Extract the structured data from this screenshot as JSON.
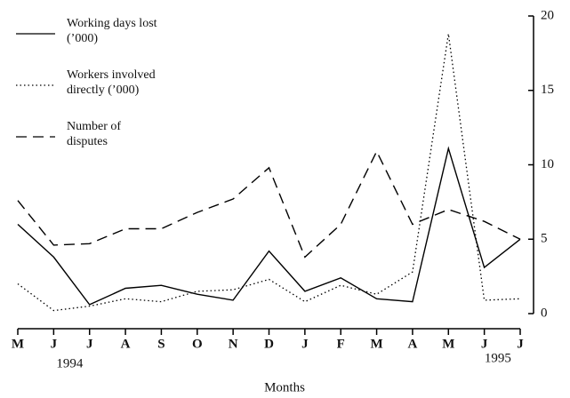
{
  "chart_data": {
    "type": "line",
    "x_label": "Months",
    "categories": [
      "M",
      "J",
      "J",
      "A",
      "S",
      "O",
      "N",
      "D",
      "J",
      "F",
      "M",
      "A",
      "M",
      "J",
      "J"
    ],
    "year_labels": [
      "1994",
      "1995"
    ],
    "y_axis_side": "right",
    "ylim": [
      0,
      20
    ],
    "yticks": [
      0,
      5,
      10,
      15,
      20
    ],
    "series": [
      {
        "name": "Working days lost (’000)",
        "color": "#000000",
        "style": "solid",
        "values": [
          6.0,
          3.8,
          0.6,
          1.7,
          1.9,
          1.3,
          0.9,
          4.2,
          1.5,
          2.4,
          1.0,
          0.8,
          11.1,
          3.1,
          5.0
        ]
      },
      {
        "name": "Workers involved directly (’000)",
        "color": "#000000",
        "style": "dotted",
        "values": [
          2.0,
          0.2,
          0.5,
          1.0,
          0.8,
          1.5,
          1.6,
          2.3,
          0.8,
          1.9,
          1.3,
          2.8,
          18.8,
          0.9,
          1.0
        ]
      },
      {
        "name": "Number of disputes",
        "color": "#000000",
        "style": "dashed",
        "values": [
          7.6,
          4.6,
          4.7,
          5.7,
          5.7,
          6.8,
          7.7,
          9.8,
          3.8,
          6.0,
          10.9,
          6.0,
          7.0,
          6.2,
          5.0
        ]
      }
    ]
  }
}
